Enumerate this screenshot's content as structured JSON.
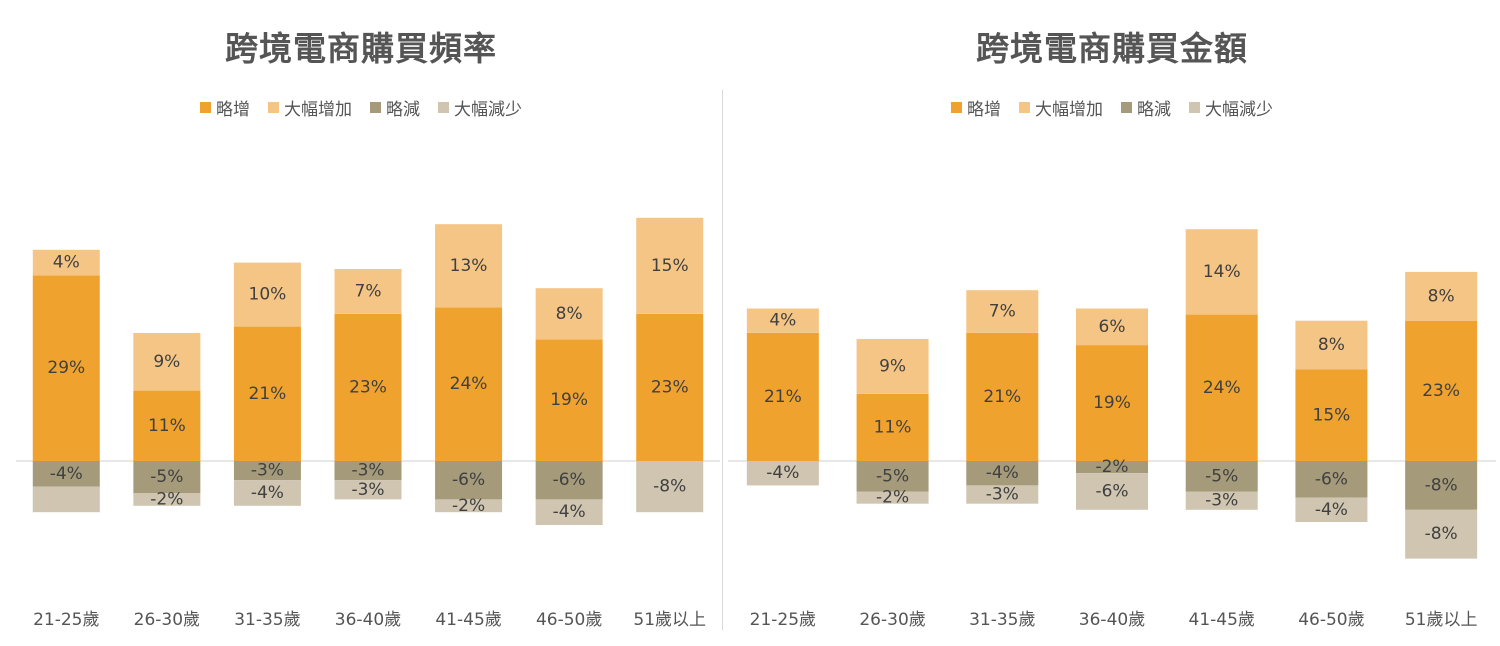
{
  "chart_data": [
    {
      "type": "bar",
      "stacked": true,
      "title": "跨境電商購買頻率",
      "categories": [
        "21-25歲",
        "26-30歲",
        "31-35歲",
        "36-40歲",
        "41-45歲",
        "46-50歲",
        "51歲以上"
      ],
      "series": [
        {
          "name": "略增",
          "color": "#F0A22E",
          "values": [
            29,
            11,
            21,
            23,
            24,
            19,
            23
          ],
          "labels": [
            "29%",
            "11%",
            "21%",
            "23%",
            "24%",
            "19%",
            "23%"
          ]
        },
        {
          "name": "大幅增加",
          "color": "#F5C585",
          "values": [
            4,
            9,
            10,
            7,
            13,
            8,
            15
          ],
          "labels": [
            "4%",
            "9%",
            "10%",
            "7%",
            "13%",
            "8%",
            "15%"
          ]
        },
        {
          "name": "略減",
          "color": "#A59A7A",
          "values": [
            -4,
            -5,
            -3,
            -3,
            -6,
            -6,
            0
          ],
          "labels": [
            "-4%",
            "-5%",
            "-3%",
            "-3%",
            "-6%",
            "-6%",
            ""
          ]
        },
        {
          "name": "大幅減少",
          "color": "#CFC5B0",
          "values": [
            -4,
            -2,
            -4,
            -3,
            -2,
            -4,
            -8
          ],
          "labels": [
            "",
            "-2%",
            "-4%",
            "-3%",
            "-2%",
            "-4%",
            "-8%"
          ]
        }
      ],
      "legend_position": "top",
      "grid": false
    },
    {
      "type": "bar",
      "stacked": true,
      "title": "跨境電商購買金額",
      "categories": [
        "21-25歲",
        "26-30歲",
        "31-35歲",
        "36-40歲",
        "41-45歲",
        "46-50歲",
        "51歲以上"
      ],
      "series": [
        {
          "name": "略增",
          "color": "#F0A22E",
          "values": [
            21,
            11,
            21,
            19,
            24,
            15,
            23
          ],
          "labels": [
            "21%",
            "11%",
            "21%",
            "19%",
            "24%",
            "15%",
            "23%"
          ]
        },
        {
          "name": "大幅增加",
          "color": "#F5C585",
          "values": [
            4,
            9,
            7,
            6,
            14,
            8,
            8
          ],
          "labels": [
            "4%",
            "9%",
            "7%",
            "6%",
            "14%",
            "8%",
            "8%"
          ]
        },
        {
          "name": "略減",
          "color": "#A59A7A",
          "values": [
            0,
            -5,
            -4,
            -2,
            -5,
            -6,
            -8
          ],
          "labels": [
            "",
            "-5%",
            "-4%",
            "-2%",
            "-5%",
            "-6%",
            "-8%"
          ]
        },
        {
          "name": "大幅減少",
          "color": "#CFC5B0",
          "values": [
            -4,
            -2,
            -3,
            -6,
            -3,
            -4,
            -8
          ],
          "labels": [
            "-4%",
            "-2%",
            "-3%",
            "-6%",
            "-3%",
            "-4%",
            "-8%"
          ]
        }
      ],
      "legend_position": "top",
      "grid": false
    }
  ]
}
